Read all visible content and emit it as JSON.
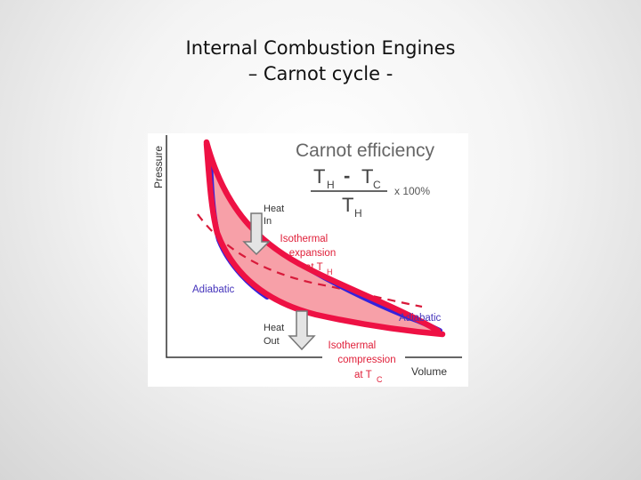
{
  "slide": {
    "title_line1": "Internal Combustion Engines",
    "title_line2": "– Carnot cycle -"
  },
  "diagram": {
    "axis_y_label": "Pressure",
    "axis_x_label": "Volume",
    "efficiency_title": "Carnot efficiency",
    "formula": {
      "numerator_a": "T",
      "numerator_a_sub": "H",
      "minus": "-",
      "numerator_b": "T",
      "numerator_b_sub": "C",
      "denominator": "T",
      "denominator_sub": "H",
      "multiplier": "x 100%"
    },
    "heat_in": [
      "Heat",
      "In"
    ],
    "heat_out": [
      "Heat",
      "Out"
    ],
    "expansion_label": [
      "Isothermal",
      "expansion",
      "at T",
      "H"
    ],
    "compression_label": [
      "Isothermal",
      "compression",
      "at T",
      "C"
    ],
    "adiabatic_left": "Adiabatic",
    "adiabatic_right": "Adiabatic",
    "colors": {
      "isotherm": "#ee1144",
      "adiabat": "#3322dd",
      "fill": "#f7a0a8",
      "dashed": "#d81a3a",
      "label_red": "#e0203a",
      "label_blue": "#4433bb",
      "arrow_fill": "#e4e4e4",
      "arrow_stroke": "#777777"
    }
  }
}
